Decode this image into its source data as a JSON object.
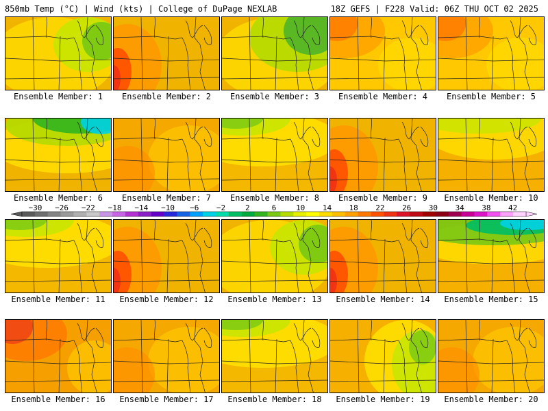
{
  "header": {
    "left": "850mb Temp (°C) | Wind (kts) | College of DuPage NEXLAB",
    "right": "18Z GEFS | F228 Valid: 06Z THU OCT 02 2025"
  },
  "members": [
    {
      "label": "Ensemble Member: 1",
      "scheme": "green-ne"
    },
    {
      "label": "Ensemble Member: 2",
      "scheme": "red-w"
    },
    {
      "label": "Ensemble Member: 3",
      "scheme": "green-ne-strong"
    },
    {
      "label": "Ensemble Member: 4",
      "scheme": "warm-nw"
    },
    {
      "label": "Ensemble Member: 5",
      "scheme": "warm-nw"
    },
    {
      "label": "Ensemble Member: 6",
      "scheme": "cold-n"
    },
    {
      "label": "Ensemble Member: 7",
      "scheme": "orange"
    },
    {
      "label": "Ensemble Member: 8",
      "scheme": "green-nw"
    },
    {
      "label": "Ensemble Member: 9",
      "scheme": "red-w"
    },
    {
      "label": "Ensemble Member: 10",
      "scheme": "green-n"
    },
    {
      "label": "Ensemble Member: 11",
      "scheme": "green-nw"
    },
    {
      "label": "Ensemble Member: 12",
      "scheme": "red-w"
    },
    {
      "label": "Ensemble Member: 13",
      "scheme": "green-ne"
    },
    {
      "label": "Ensemble Member: 14",
      "scheme": "red-w"
    },
    {
      "label": "Ensemble Member: 15",
      "scheme": "cold-band"
    },
    {
      "label": "Ensemble Member: 16",
      "scheme": "red-nw"
    },
    {
      "label": "Ensemble Member: 17",
      "scheme": "orange"
    },
    {
      "label": "Ensemble Member: 18",
      "scheme": "green-nw"
    },
    {
      "label": "Ensemble Member: 19",
      "scheme": "green-e"
    },
    {
      "label": "Ensemble Member: 20",
      "scheme": "orange"
    }
  ],
  "colorbar": {
    "ticks": [
      "−30",
      "−26",
      "−22",
      "−18",
      "−14",
      "−10",
      "−6",
      "−2",
      "2",
      "6",
      "10",
      "14",
      "18",
      "22",
      "26",
      "30",
      "34",
      "38",
      "42"
    ],
    "colors": [
      "#5a5a5a",
      "#6e6e6e",
      "#848484",
      "#9a9a9a",
      "#b0b0b0",
      "#c8c8c8",
      "#c896e6",
      "#c864e6",
      "#b432d2",
      "#8c1ec8",
      "#6400c8",
      "#2828dc",
      "#1464e6",
      "#00a0ff",
      "#00d2e6",
      "#00dcaa",
      "#00be64",
      "#00aa3c",
      "#32b41e",
      "#78c814",
      "#b4dc00",
      "#e6f000",
      "#ffff00",
      "#ffdc00",
      "#ffbe00",
      "#ffa000",
      "#ff7800",
      "#ff5000",
      "#f03214",
      "#dc1428",
      "#be0a14",
      "#a00000",
      "#8c0014",
      "#a00050",
      "#c80096",
      "#dc14c8",
      "#f050f0",
      "#ffa0ff",
      "#ffd2ff"
    ]
  }
}
